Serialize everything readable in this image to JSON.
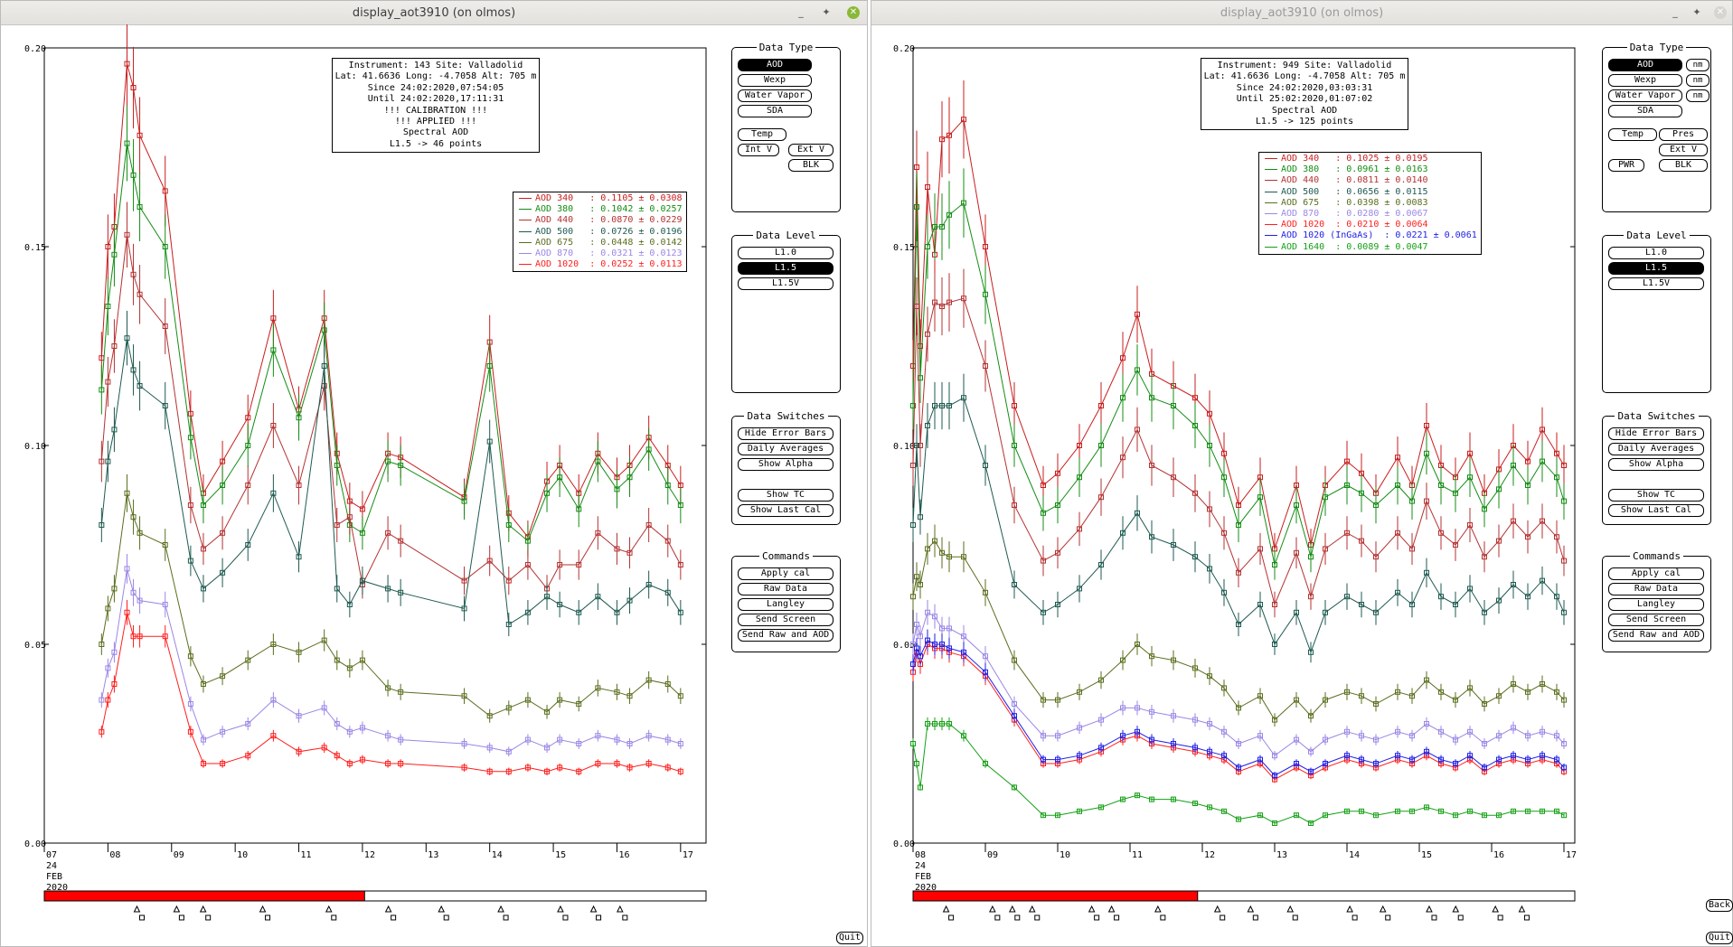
{
  "colors": {
    "c340": "#c81e1e",
    "c380": "#148c14",
    "c440": "#b43232",
    "c500": "#1e5a50",
    "c675": "#5a6e1e",
    "c870": "#9b87e6",
    "c1020": "#ff1e1e",
    "c1020ig": "#1e1ee6",
    "c1640": "#14a014"
  },
  "left": {
    "title": "display_aot3910 (on olmos)",
    "info": [
      "Instrument: 143 Site: Valladolid",
      "Lat: 41.6636 Long: -4.7058 Alt: 705 m",
      "Since 24:02:2020,07:54:05",
      "Until 24:02:2020,17:11:31",
      "!!! CALIBRATION !!!",
      "!!!  APPLIED  !!!",
      "Spectral AOD",
      "L1.5 -> 46 points"
    ],
    "legend": [
      {
        "label": "AOD 340   : 0.1105 ± 0.0308",
        "color": "#c81e1e"
      },
      {
        "label": "AOD 380   : 0.1042 ± 0.0257",
        "color": "#148c14"
      },
      {
        "label": "AOD 440   : 0.0870 ± 0.0229",
        "color": "#b43232"
      },
      {
        "label": "AOD 500   : 0.0726 ± 0.0196",
        "color": "#1e5a50"
      },
      {
        "label": "AOD 675   : 0.0448 ± 0.0142",
        "color": "#5a6e1e"
      },
      {
        "label": "AOD 870   : 0.0321 ± 0.0123",
        "color": "#9b87e6"
      },
      {
        "label": "AOD 1020  : 0.0252 ± 0.0113",
        "color": "#ff1e1e"
      }
    ],
    "quit_label": "Quit"
  },
  "right": {
    "title": "display_aot3910 (on olmos)",
    "info": [
      "Instrument: 949 Site: Valladolid",
      "Lat: 41.6636 Long: -4.7058 Alt: 705 m",
      "Since 24:02:2020,03:03:31",
      "Until 25:02:2020,01:07:02",
      "Spectral AOD",
      "L1.5 -> 125 points"
    ],
    "legend": [
      {
        "label": "AOD 340   : 0.1025 ± 0.0195",
        "color": "#c81e1e"
      },
      {
        "label": "AOD 380   : 0.0961 ± 0.0163",
        "color": "#148c14"
      },
      {
        "label": "AOD 440   : 0.0811 ± 0.0140",
        "color": "#b43232"
      },
      {
        "label": "AOD 500   : 0.0656 ± 0.0115",
        "color": "#1e5a50"
      },
      {
        "label": "AOD 675   : 0.0398 ± 0.0083",
        "color": "#5a6e1e"
      },
      {
        "label": "AOD 870   : 0.0280 ± 0.0067",
        "color": "#9b87e6"
      },
      {
        "label": "AOD 1020  : 0.0210 ± 0.0064",
        "color": "#ff1e1e"
      },
      {
        "label": "AOD 1020 (InGaAs)  : 0.0221 ± 0.0061",
        "color": "#1e1ee6"
      },
      {
        "label": "AOD 1640  : 0.0089 ± 0.0047",
        "color": "#14a014"
      }
    ],
    "quit_label": "Quit",
    "back_label": "Back"
  },
  "panels": {
    "data_type": {
      "title": "Data Type",
      "aod": "AOD",
      "wexp": "Wexp",
      "water_vapor": "Water Vapor",
      "sda": "SDA",
      "temp": "Temp",
      "int_v": "Int V",
      "ext_v": "Ext V",
      "blk": "BLK",
      "pres": "Pres",
      "pwr": "PWR",
      "nm": "nm"
    },
    "data_level": {
      "title": "Data Level",
      "l10": "L1.0",
      "l15": "L1.5",
      "l15v": "L1.5V"
    },
    "data_switches": {
      "title": "Data Switches",
      "hide_error": "Hide Error Bars",
      "daily_avg": "Daily Averages",
      "show_alpha": "Show Alpha",
      "show_tc": "Show TC",
      "show_last_cal": "Show Last Cal"
    },
    "commands": {
      "title": "Commands",
      "apply_cal": "Apply cal",
      "raw_data": "Raw Data",
      "langley": "Langley",
      "send_screen": "Send Screen",
      "send_raw_aod": "Send Raw and AOD"
    }
  },
  "chart_data": [
    {
      "type": "line",
      "ylim": [
        0,
        0.2
      ],
      "yticks": [
        "0.00",
        "0.05",
        "0.10",
        "0.15",
        "0.20"
      ],
      "xticks": [
        "07",
        "08",
        "09",
        "10",
        "11",
        "12",
        "13",
        "14",
        "15",
        "16",
        "17"
      ],
      "date_label": [
        "24",
        "FEB",
        "2020"
      ],
      "x": [
        7.9,
        8.0,
        8.1,
        8.3,
        8.4,
        8.5,
        8.9,
        9.3,
        9.5,
        9.8,
        10.2,
        10.6,
        11.0,
        11.4,
        11.6,
        11.8,
        12.0,
        12.4,
        12.6,
        13.6,
        14.0,
        14.3,
        14.6,
        14.9,
        15.1,
        15.4,
        15.7,
        16.0,
        16.2,
        16.5,
        16.8,
        17.0
      ],
      "series": [
        {
          "name": "AOD 340",
          "values": [
            0.122,
            0.15,
            0.155,
            0.196,
            0.19,
            0.178,
            0.164,
            0.108,
            0.088,
            0.096,
            0.107,
            0.132,
            0.109,
            0.132,
            0.098,
            0.086,
            0.084,
            0.098,
            0.097,
            0.087,
            0.126,
            0.083,
            0.077,
            0.091,
            0.095,
            0.088,
            0.098,
            0.092,
            0.095,
            0.102,
            0.095,
            0.09
          ]
        },
        {
          "name": "AOD 380",
          "values": [
            0.114,
            0.135,
            0.148,
            0.176,
            0.168,
            0.16,
            0.15,
            0.102,
            0.085,
            0.09,
            0.1,
            0.124,
            0.107,
            0.129,
            0.095,
            0.08,
            0.078,
            0.096,
            0.095,
            0.086,
            0.12,
            0.08,
            0.076,
            0.088,
            0.092,
            0.084,
            0.096,
            0.089,
            0.092,
            0.099,
            0.09,
            0.085
          ]
        },
        {
          "name": "AOD 440",
          "values": [
            0.096,
            0.116,
            0.125,
            0.153,
            0.143,
            0.138,
            0.13,
            0.085,
            0.074,
            0.078,
            0.09,
            0.105,
            0.09,
            0.115,
            0.08,
            0.082,
            0.065,
            0.078,
            0.076,
            0.066,
            0.071,
            0.066,
            0.07,
            0.064,
            0.07,
            0.07,
            0.078,
            0.074,
            0.073,
            0.08,
            0.076,
            0.07
          ]
        },
        {
          "name": "AOD 500",
          "values": [
            0.08,
            0.096,
            0.104,
            0.127,
            0.119,
            0.115,
            0.11,
            0.071,
            0.064,
            0.068,
            0.075,
            0.088,
            0.072,
            0.12,
            0.064,
            0.06,
            0.066,
            0.064,
            0.063,
            0.059,
            0.101,
            0.055,
            0.058,
            0.062,
            0.06,
            0.058,
            0.062,
            0.058,
            0.061,
            0.065,
            0.063,
            0.058
          ]
        },
        {
          "name": "AOD 675",
          "values": [
            0.05,
            0.059,
            0.064,
            0.088,
            0.082,
            0.078,
            0.075,
            0.047,
            0.04,
            0.042,
            0.046,
            0.05,
            0.048,
            0.051,
            0.046,
            0.044,
            0.046,
            0.039,
            0.038,
            0.037,
            0.032,
            0.034,
            0.036,
            0.033,
            0.036,
            0.035,
            0.039,
            0.038,
            0.037,
            0.041,
            0.04,
            0.037
          ]
        },
        {
          "name": "AOD 870",
          "values": [
            0.036,
            0.044,
            0.048,
            0.069,
            0.063,
            0.061,
            0.06,
            0.035,
            0.026,
            0.028,
            0.03,
            0.036,
            0.032,
            0.034,
            0.03,
            0.028,
            0.029,
            0.027,
            0.026,
            0.025,
            0.024,
            0.023,
            0.026,
            0.024,
            0.026,
            0.025,
            0.027,
            0.026,
            0.025,
            0.027,
            0.026,
            0.025
          ]
        },
        {
          "name": "AOD 1020",
          "values": [
            0.028,
            0.036,
            0.04,
            0.058,
            0.052,
            0.052,
            0.052,
            0.028,
            0.02,
            0.02,
            0.022,
            0.027,
            0.023,
            0.024,
            0.022,
            0.02,
            0.021,
            0.02,
            0.02,
            0.019,
            0.018,
            0.018,
            0.019,
            0.018,
            0.019,
            0.018,
            0.02,
            0.02,
            0.019,
            0.02,
            0.019,
            0.018
          ]
        }
      ]
    },
    {
      "type": "line",
      "ylim": [
        0,
        0.2
      ],
      "yticks": [
        "0.00",
        "0.05",
        "0.10",
        "0.15",
        "0.20"
      ],
      "xticks": [
        "08",
        "09",
        "10",
        "11",
        "12",
        "13",
        "14",
        "15",
        "16",
        "17"
      ],
      "date_label": [
        "24",
        "FEB",
        "2020"
      ],
      "x": [
        8.0,
        8.05,
        8.1,
        8.2,
        8.3,
        8.4,
        8.5,
        8.7,
        9.0,
        9.4,
        9.8,
        10.0,
        10.3,
        10.6,
        10.9,
        11.1,
        11.3,
        11.6,
        11.9,
        12.1,
        12.3,
        12.5,
        12.8,
        13.0,
        13.3,
        13.5,
        13.7,
        14.0,
        14.2,
        14.4,
        14.7,
        14.9,
        15.1,
        15.3,
        15.5,
        15.7,
        15.9,
        16.1,
        16.3,
        16.5,
        16.7,
        16.9,
        17.0
      ],
      "series": [
        {
          "name": "AOD 340",
          "values": [
            0.12,
            0.17,
            0.125,
            0.165,
            0.148,
            0.177,
            0.178,
            0.182,
            0.15,
            0.11,
            0.09,
            0.093,
            0.1,
            0.11,
            0.122,
            0.133,
            0.118,
            0.115,
            0.112,
            0.108,
            0.098,
            0.085,
            0.092,
            0.074,
            0.09,
            0.075,
            0.09,
            0.096,
            0.093,
            0.088,
            0.097,
            0.09,
            0.105,
            0.095,
            0.092,
            0.098,
            0.088,
            0.094,
            0.1,
            0.096,
            0.104,
            0.098,
            0.095
          ]
        },
        {
          "name": "AOD 380",
          "values": [
            0.11,
            0.16,
            0.117,
            0.15,
            0.155,
            0.155,
            0.158,
            0.161,
            0.138,
            0.1,
            0.083,
            0.085,
            0.092,
            0.1,
            0.112,
            0.119,
            0.112,
            0.11,
            0.105,
            0.1,
            0.092,
            0.08,
            0.087,
            0.07,
            0.085,
            0.072,
            0.087,
            0.09,
            0.088,
            0.085,
            0.09,
            0.086,
            0.098,
            0.09,
            0.088,
            0.092,
            0.084,
            0.089,
            0.095,
            0.09,
            0.096,
            0.092,
            0.086
          ]
        },
        {
          "name": "AOD 440",
          "values": [
            0.095,
            0.135,
            0.1,
            0.128,
            0.136,
            0.135,
            0.136,
            0.137,
            0.12,
            0.085,
            0.071,
            0.073,
            0.079,
            0.087,
            0.097,
            0.104,
            0.095,
            0.092,
            0.088,
            0.084,
            0.078,
            0.068,
            0.074,
            0.06,
            0.073,
            0.062,
            0.074,
            0.078,
            0.076,
            0.072,
            0.078,
            0.074,
            0.086,
            0.078,
            0.075,
            0.08,
            0.072,
            0.076,
            0.081,
            0.077,
            0.081,
            0.077,
            0.071
          ]
        },
        {
          "name": "AOD 500",
          "values": [
            0.08,
            0.1,
            0.082,
            0.105,
            0.11,
            0.11,
            0.11,
            0.112,
            0.095,
            0.065,
            0.058,
            0.06,
            0.064,
            0.07,
            0.078,
            0.083,
            0.077,
            0.075,
            0.072,
            0.069,
            0.063,
            0.055,
            0.06,
            0.05,
            0.058,
            0.048,
            0.058,
            0.062,
            0.06,
            0.058,
            0.063,
            0.06,
            0.068,
            0.062,
            0.06,
            0.064,
            0.058,
            0.061,
            0.065,
            0.062,
            0.066,
            0.062,
            0.058
          ]
        },
        {
          "name": "AOD 675",
          "values": [
            0.062,
            0.067,
            0.065,
            0.074,
            0.076,
            0.073,
            0.072,
            0.072,
            0.063,
            0.046,
            0.036,
            0.036,
            0.038,
            0.041,
            0.046,
            0.05,
            0.047,
            0.046,
            0.044,
            0.042,
            0.039,
            0.034,
            0.037,
            0.031,
            0.036,
            0.032,
            0.036,
            0.038,
            0.037,
            0.035,
            0.038,
            0.037,
            0.041,
            0.038,
            0.036,
            0.039,
            0.035,
            0.037,
            0.04,
            0.038,
            0.04,
            0.038,
            0.036
          ]
        },
        {
          "name": "AOD 870",
          "values": [
            0.05,
            0.055,
            0.052,
            0.058,
            0.057,
            0.054,
            0.054,
            0.052,
            0.047,
            0.035,
            0.027,
            0.027,
            0.029,
            0.031,
            0.034,
            0.034,
            0.033,
            0.032,
            0.031,
            0.03,
            0.028,
            0.025,
            0.027,
            0.022,
            0.026,
            0.023,
            0.026,
            0.028,
            0.027,
            0.026,
            0.028,
            0.027,
            0.03,
            0.028,
            0.026,
            0.028,
            0.025,
            0.027,
            0.029,
            0.027,
            0.028,
            0.027,
            0.025
          ]
        },
        {
          "name": "AOD 1020",
          "values": [
            0.043,
            0.048,
            0.045,
            0.05,
            0.049,
            0.049,
            0.048,
            0.047,
            0.042,
            0.031,
            0.02,
            0.02,
            0.021,
            0.023,
            0.026,
            0.027,
            0.025,
            0.024,
            0.023,
            0.022,
            0.021,
            0.018,
            0.02,
            0.016,
            0.019,
            0.017,
            0.019,
            0.021,
            0.02,
            0.019,
            0.021,
            0.02,
            0.022,
            0.02,
            0.019,
            0.021,
            0.018,
            0.02,
            0.021,
            0.02,
            0.021,
            0.02,
            0.018
          ]
        },
        {
          "name": "AOD 1020 (InGaAs)",
          "values": [
            0.045,
            0.049,
            0.047,
            0.051,
            0.05,
            0.05,
            0.049,
            0.048,
            0.043,
            0.032,
            0.021,
            0.021,
            0.022,
            0.024,
            0.027,
            0.028,
            0.026,
            0.025,
            0.024,
            0.023,
            0.022,
            0.019,
            0.021,
            0.017,
            0.02,
            0.018,
            0.02,
            0.022,
            0.021,
            0.02,
            0.022,
            0.021,
            0.023,
            0.021,
            0.02,
            0.022,
            0.019,
            0.021,
            0.022,
            0.021,
            0.022,
            0.021,
            0.019
          ]
        },
        {
          "name": "AOD 1640",
          "values": [
            0.025,
            0.02,
            0.014,
            0.03,
            0.03,
            0.03,
            0.03,
            0.027,
            0.02,
            0.014,
            0.007,
            0.007,
            0.008,
            0.009,
            0.011,
            0.012,
            0.011,
            0.011,
            0.01,
            0.009,
            0.008,
            0.006,
            0.007,
            0.005,
            0.007,
            0.005,
            0.007,
            0.008,
            0.008,
            0.007,
            0.008,
            0.008,
            0.009,
            0.008,
            0.007,
            0.008,
            0.007,
            0.007,
            0.008,
            0.008,
            0.008,
            0.008,
            0.007
          ]
        }
      ]
    }
  ]
}
